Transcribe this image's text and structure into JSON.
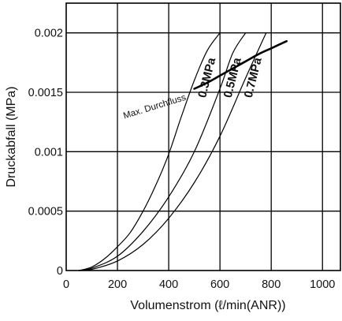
{
  "chart_data": {
    "type": "line",
    "xlabel": "Volumenstrom (ℓ/min(ANR))",
    "ylabel": "Druckabfall (MPa)",
    "xlim": [
      0,
      1070
    ],
    "ylim": [
      0,
      0.00225
    ],
    "x_ticks": [
      {
        "value": 0,
        "label": "0"
      },
      {
        "value": 200,
        "label": "200"
      },
      {
        "value": 400,
        "label": "400"
      },
      {
        "value": 600,
        "label": "600"
      },
      {
        "value": 800,
        "label": "800"
      },
      {
        "value": 1000,
        "label": "1000"
      }
    ],
    "y_ticks": [
      {
        "value": 0,
        "label": "0"
      },
      {
        "value": 0.0005,
        "label": "0.0005"
      },
      {
        "value": 0.001,
        "label": "0.001"
      },
      {
        "value": 0.0015,
        "label": "0.0015"
      },
      {
        "value": 0.002,
        "label": "0.002"
      }
    ],
    "grid": true,
    "series": [
      {
        "name": "0.3MPa",
        "x": [
          50,
          100,
          150,
          200,
          250,
          300,
          350,
          400,
          450,
          500,
          550,
          600
        ],
        "y": [
          0,
          3e-05,
          0.0001,
          0.0002,
          0.00032,
          0.0005,
          0.00072,
          0.00098,
          0.0013,
          0.0016,
          0.00185,
          0.002
        ]
      },
      {
        "name": "0.5MPa",
        "x": [
          50,
          100,
          200,
          300,
          400,
          500,
          600,
          650,
          700
        ],
        "y": [
          0,
          2e-05,
          0.00012,
          0.00033,
          0.00062,
          0.001,
          0.00153,
          0.00183,
          0.002
        ]
      },
      {
        "name": "0.7MPa",
        "x": [
          50,
          100,
          200,
          300,
          400,
          500,
          600,
          700,
          780
        ],
        "y": [
          0,
          1e-05,
          8e-05,
          0.00022,
          0.00044,
          0.00074,
          0.00113,
          0.00162,
          0.002
        ]
      },
      {
        "name": "Max. Durchfluss",
        "x": [
          500,
          550,
          600,
          650,
          700,
          750,
          800,
          860
        ],
        "y": [
          0.00153,
          0.00158,
          0.00164,
          0.0017,
          0.00176,
          0.00182,
          0.00187,
          0.00193
        ]
      }
    ]
  }
}
